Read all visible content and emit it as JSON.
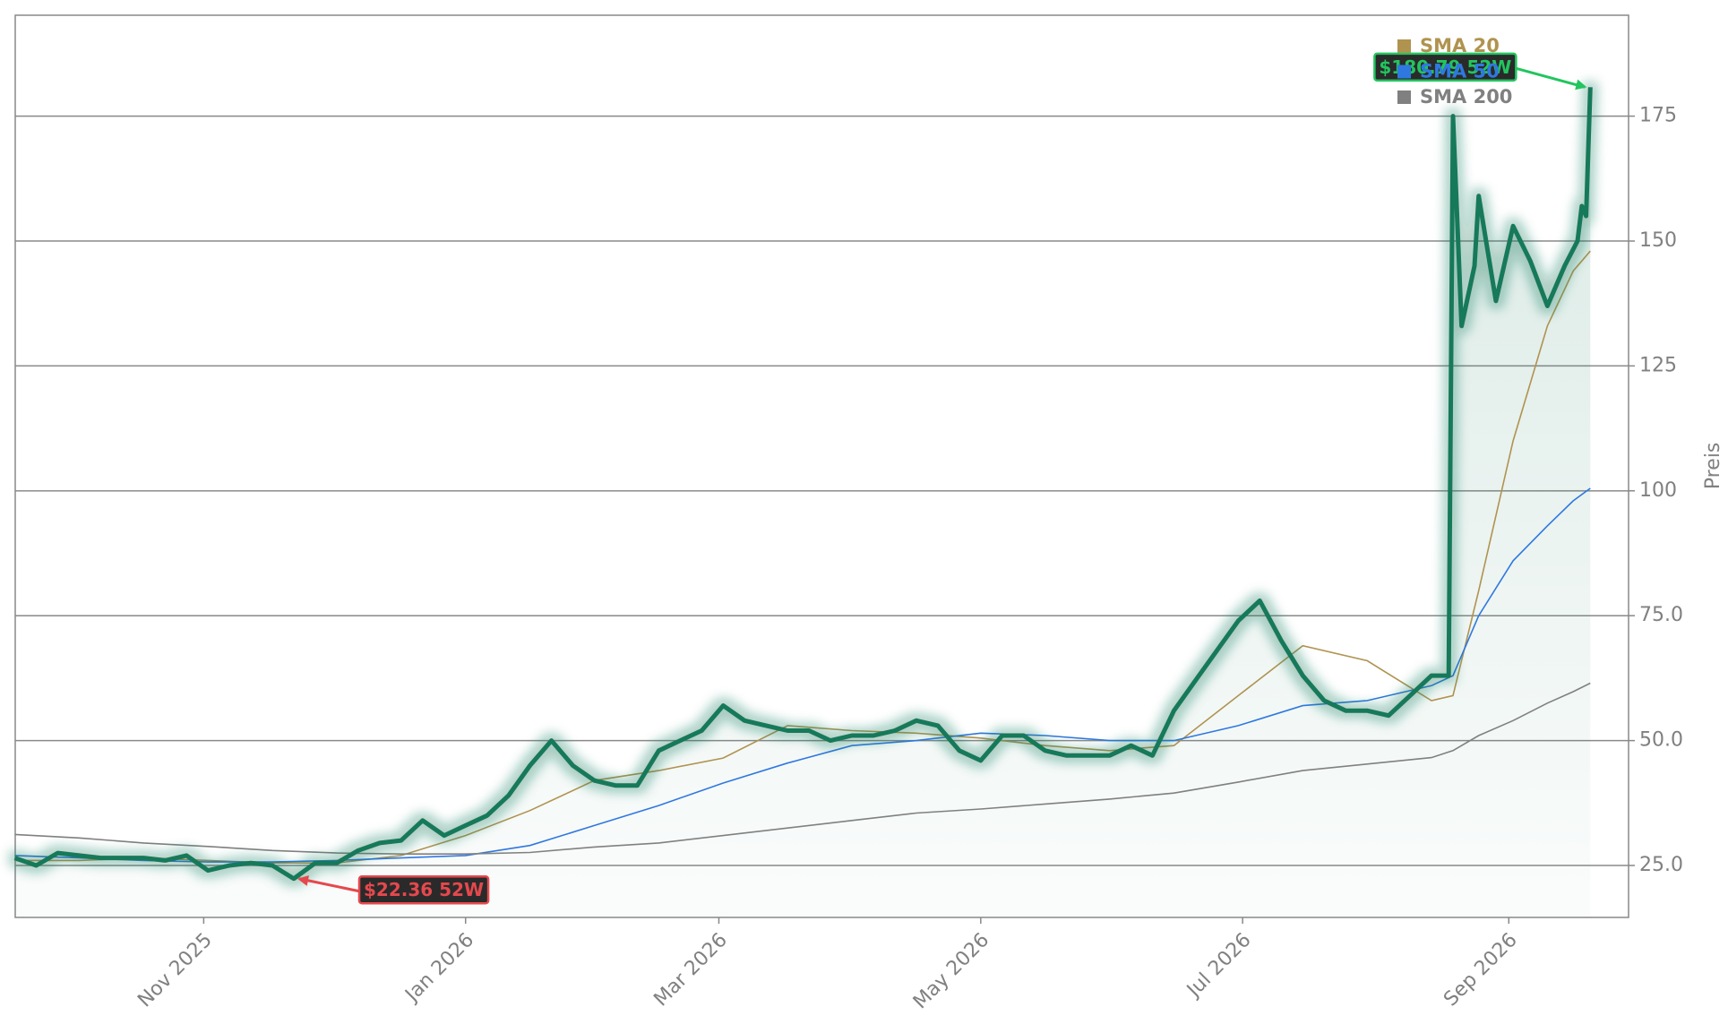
{
  "chart_data": {
    "type": "line",
    "y_label": "Preis",
    "xlim": [
      20349.1,
      20724.9
    ],
    "xticks": [
      {
        "value": 20393,
        "label": "Nov 2025"
      },
      {
        "value": 20454,
        "label": "Jan 2026"
      },
      {
        "value": 20513,
        "label": "Mar 2026"
      },
      {
        "value": 20574,
        "label": "May 2026"
      },
      {
        "value": 20635,
        "label": "Jul 2026"
      },
      {
        "value": 20697,
        "label": "Sep 2026"
      }
    ],
    "ylim": [
      14.6,
      195.2
    ],
    "yticks": [
      {
        "value": 25,
        "label": "25.0"
      },
      {
        "value": 50,
        "label": "50.0"
      },
      {
        "value": 75,
        "label": "75.0"
      },
      100,
      125,
      150,
      175
    ],
    "grid": true,
    "legend": "upper right",
    "price": {
      "color": "#17795a",
      "x": [
        20349,
        20354,
        20359,
        20364,
        20369,
        20374,
        20379,
        20384,
        20389,
        20394,
        20399,
        20404,
        20409,
        20414,
        20419,
        20424,
        20429,
        20434,
        20439,
        20444,
        20449,
        20454,
        20459,
        20464,
        20469,
        20474,
        20479,
        20484,
        20489,
        20494,
        20499,
        20504,
        20509,
        20514,
        20519,
        20524,
        20529,
        20534,
        20539,
        20544,
        20549,
        20554,
        20559,
        20564,
        20569,
        20574,
        20579,
        20584,
        20589,
        20594,
        20599,
        20604,
        20609,
        20614,
        20619,
        20624,
        20629,
        20634,
        20639,
        20644,
        20649,
        20654,
        20659,
        20664,
        20669,
        20674,
        20679,
        20683,
        20684,
        20686,
        20689,
        20690,
        20694,
        20698,
        20702,
        20706,
        20710,
        20713,
        20714,
        20715,
        20716
      ],
      "values": [
        26.5,
        25,
        27.5,
        27,
        26.5,
        26.5,
        26.5,
        26,
        27,
        24,
        25,
        25.5,
        25,
        22.36,
        25.5,
        25.5,
        28,
        29.5,
        30,
        34,
        31,
        33,
        35,
        39,
        45,
        50,
        45,
        42,
        41,
        41,
        48,
        50,
        52,
        57,
        54,
        53,
        52,
        52,
        50,
        51,
        51,
        52,
        54,
        53,
        48,
        46,
        51,
        51,
        48,
        47,
        47,
        47,
        49,
        47,
        56,
        62,
        68,
        74,
        78,
        70,
        63,
        58,
        56,
        56,
        55,
        59,
        63,
        63,
        175,
        133,
        145,
        159,
        138,
        153,
        146,
        137,
        145,
        150,
        157,
        155,
        180.79
      ]
    },
    "series": [
      {
        "name": "SMA 20",
        "color": "#b0934f",
        "x": [
          20349,
          20364,
          20379,
          20394,
          20409,
          20424,
          20439,
          20454,
          20469,
          20484,
          20499,
          20514,
          20529,
          20544,
          20559,
          20574,
          20589,
          20604,
          20619,
          20634,
          20649,
          20664,
          20679,
          20684,
          20690,
          20698,
          20706,
          20712,
          20716
        ],
        "values": [
          26,
          26,
          26.5,
          26,
          25.5,
          25.5,
          27,
          31,
          36,
          42,
          44,
          46.5,
          53,
          52,
          51.5,
          50.5,
          49,
          48,
          49,
          59,
          69,
          66,
          58,
          59,
          80,
          110,
          133,
          144,
          148
        ]
      },
      {
        "name": "SMA 50",
        "color": "#2f78e0",
        "x": [
          20349,
          20364,
          20379,
          20394,
          20409,
          20424,
          20439,
          20454,
          20469,
          20484,
          20499,
          20514,
          20529,
          20544,
          20559,
          20574,
          20589,
          20604,
          20619,
          20634,
          20649,
          20664,
          20679,
          20684,
          20690,
          20698,
          20706,
          20712,
          20716
        ],
        "values": [
          27,
          26.5,
          26,
          25.7,
          25.7,
          26,
          26.5,
          27,
          29,
          33,
          37,
          41.5,
          45.5,
          49,
          50,
          51.5,
          51,
          50,
          50,
          53,
          57,
          58,
          61,
          63,
          75,
          86,
          93,
          98,
          100.5
        ]
      },
      {
        "name": "SMA 200",
        "color": "#808080",
        "x": [
          20349,
          20364,
          20379,
          20394,
          20409,
          20424,
          20439,
          20454,
          20469,
          20484,
          20499,
          20514,
          20529,
          20544,
          20559,
          20574,
          20589,
          20604,
          20619,
          20634,
          20649,
          20664,
          20679,
          20684,
          20690,
          20698,
          20706,
          20712,
          20716
        ],
        "values": [
          31.2,
          30.5,
          29.5,
          28.8,
          28,
          27.5,
          27.3,
          27.3,
          27.6,
          28.7,
          29.5,
          31,
          32.5,
          34,
          35.5,
          36.3,
          37.3,
          38.3,
          39.5,
          41.7,
          44,
          45.3,
          46.6,
          48,
          51,
          54,
          57.5,
          59.8,
          61.5
        ]
      }
    ],
    "annotations": [
      {
        "text": "$180.79 52W",
        "x": 20716,
        "y": 180.79,
        "color": "#22c55e"
      },
      {
        "text": "$22.36 52W",
        "x": 20414,
        "y": 22.36,
        "color": "#e5484d"
      }
    ]
  }
}
